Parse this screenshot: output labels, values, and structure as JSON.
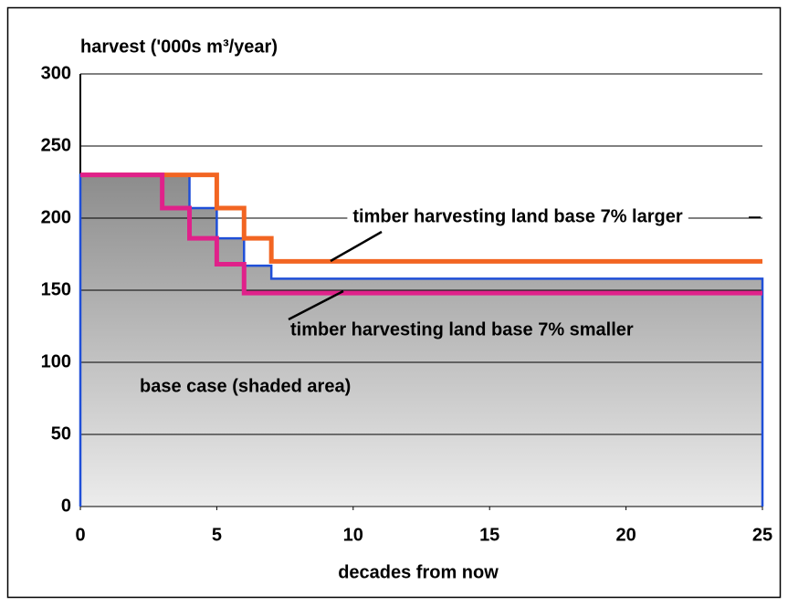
{
  "chart_data": {
    "type": "line",
    "step": "post",
    "title": "harvest ('000s m³/year)",
    "x_label": "decades from now",
    "xlim": [
      0,
      25
    ],
    "xticks": [
      0,
      5,
      10,
      15,
      20,
      25
    ],
    "ylim": [
      0,
      300
    ],
    "yticks": [
      0,
      50,
      100,
      150,
      200,
      250,
      300
    ],
    "grid": true,
    "series": [
      {
        "name": "base case (shaded area)",
        "color": "#1f4fd8",
        "fill": true,
        "x": [
          0,
          4,
          5,
          6,
          7,
          25
        ],
        "values": [
          230,
          207,
          186,
          167,
          158,
          158
        ]
      },
      {
        "name": "timber harvesting land base 7% larger",
        "color": "#f26522",
        "fill": false,
        "x": [
          0,
          5,
          6,
          7,
          25
        ],
        "values": [
          230,
          207,
          186,
          170,
          170
        ]
      },
      {
        "name": "timber harvesting land base 7% smaller",
        "color": "#e0218a",
        "fill": false,
        "x": [
          0,
          3,
          4,
          5,
          6,
          25
        ],
        "values": [
          230,
          207,
          186,
          168,
          148,
          148
        ]
      }
    ]
  }
}
